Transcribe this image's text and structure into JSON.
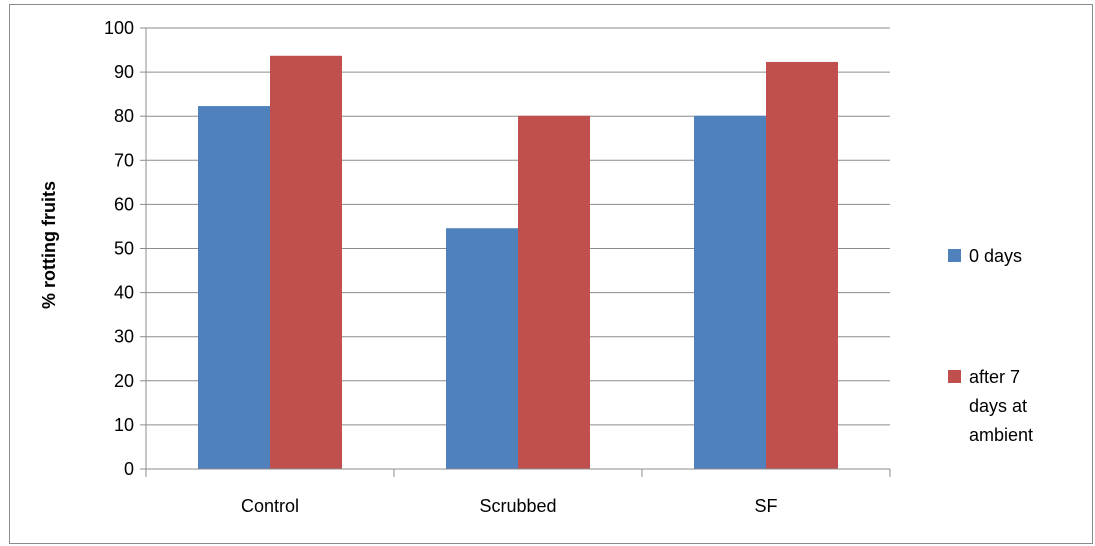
{
  "chart_data": {
    "type": "bar",
    "title": "",
    "xlabel": "",
    "ylabel": "% rotting fruits",
    "categories": [
      "Control",
      "Scrubbed",
      "SF"
    ],
    "series": [
      {
        "name": "0 days",
        "color": "#4f81bd",
        "values": [
          82.3,
          54.6,
          80.1
        ]
      },
      {
        "name": "after 7 days at ambient",
        "legend_lines": [
          "after 7",
          "days at",
          "ambient"
        ],
        "color": "#c0504d",
        "values": [
          93.7,
          80.1,
          92.3
        ]
      }
    ],
    "ylim": [
      0,
      100
    ],
    "yticks": [
      0,
      10,
      20,
      30,
      40,
      50,
      60,
      70,
      80,
      90,
      100
    ],
    "grid": true,
    "legend": "right"
  }
}
